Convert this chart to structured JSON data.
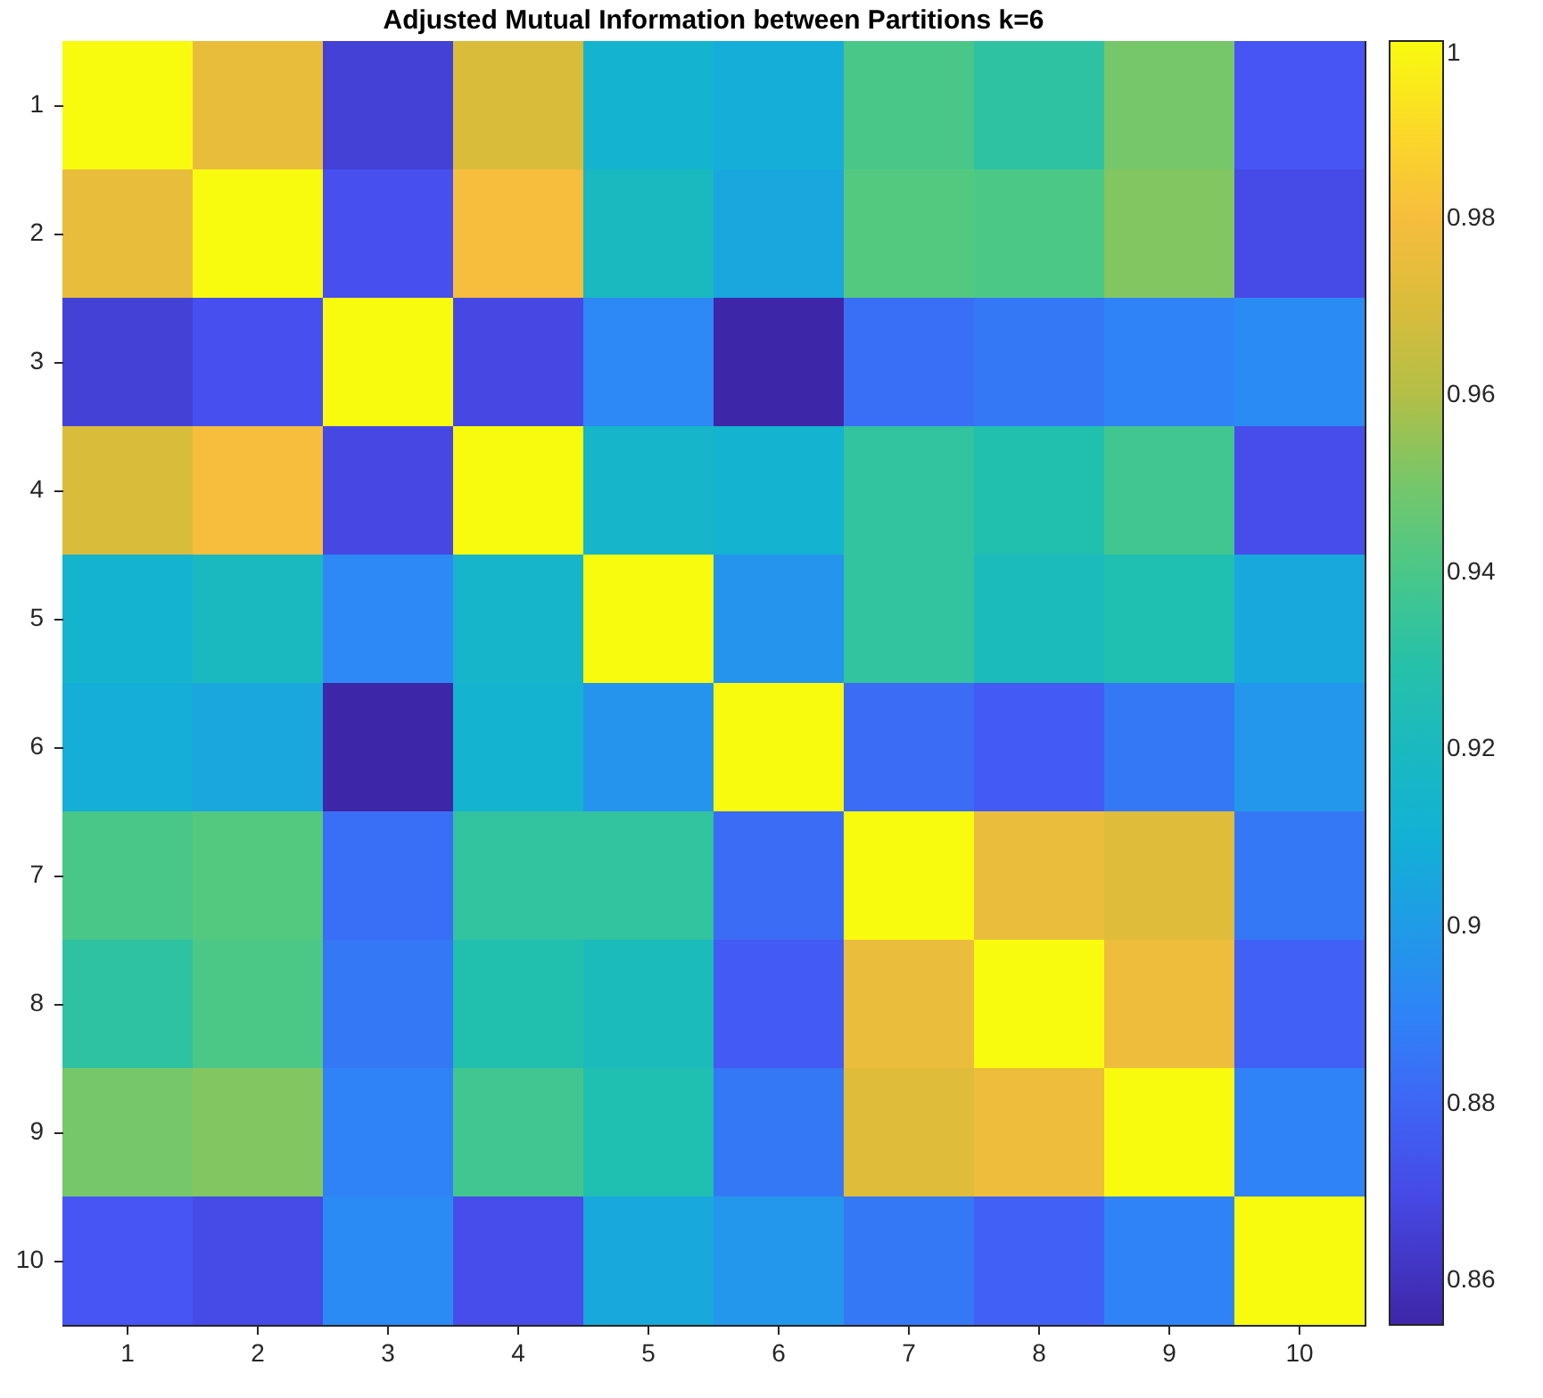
{
  "chart_data": {
    "type": "heatmap",
    "title": "Adjusted Mutual Information between Partitions k=6",
    "categories": [
      "1",
      "2",
      "3",
      "4",
      "5",
      "6",
      "7",
      "8",
      "9",
      "10"
    ],
    "y_categories": [
      "1",
      "2",
      "3",
      "4",
      "5",
      "6",
      "7",
      "8",
      "9",
      "10"
    ],
    "cells": [
      [
        1,
        0.975,
        0.866,
        0.97,
        0.913,
        0.908,
        0.94,
        0.932,
        0.95,
        0.874
      ],
      [
        0.975,
        1,
        0.872,
        0.98,
        0.92,
        0.905,
        0.943,
        0.941,
        0.952,
        0.87
      ],
      [
        0.866,
        0.872,
        1,
        0.869,
        0.892,
        0.855,
        0.883,
        0.886,
        0.89,
        0.893
      ],
      [
        0.97,
        0.98,
        0.869,
        1,
        0.915,
        0.912,
        0.933,
        0.928,
        0.938,
        0.871
      ],
      [
        0.913,
        0.92,
        0.892,
        0.915,
        1,
        0.897,
        0.933,
        0.922,
        0.927,
        0.906
      ],
      [
        0.908,
        0.905,
        0.855,
        0.912,
        0.897,
        1,
        0.882,
        0.876,
        0.886,
        0.898
      ],
      [
        0.94,
        0.943,
        0.883,
        0.933,
        0.933,
        0.882,
        1,
        0.976,
        0.972,
        0.886
      ],
      [
        0.932,
        0.941,
        0.886,
        0.928,
        0.922,
        0.876,
        0.976,
        1,
        0.977,
        0.878
      ],
      [
        0.95,
        0.952,
        0.89,
        0.938,
        0.927,
        0.886,
        0.972,
        0.977,
        1,
        0.89
      ],
      [
        0.874,
        0.87,
        0.893,
        0.871,
        0.906,
        0.898,
        0.886,
        0.878,
        0.89,
        1
      ]
    ],
    "clim": [
      0.855,
      1
    ],
    "cticks": [
      0.86,
      0.88,
      0.9,
      0.92,
      0.94,
      0.96,
      0.98,
      1
    ]
  }
}
